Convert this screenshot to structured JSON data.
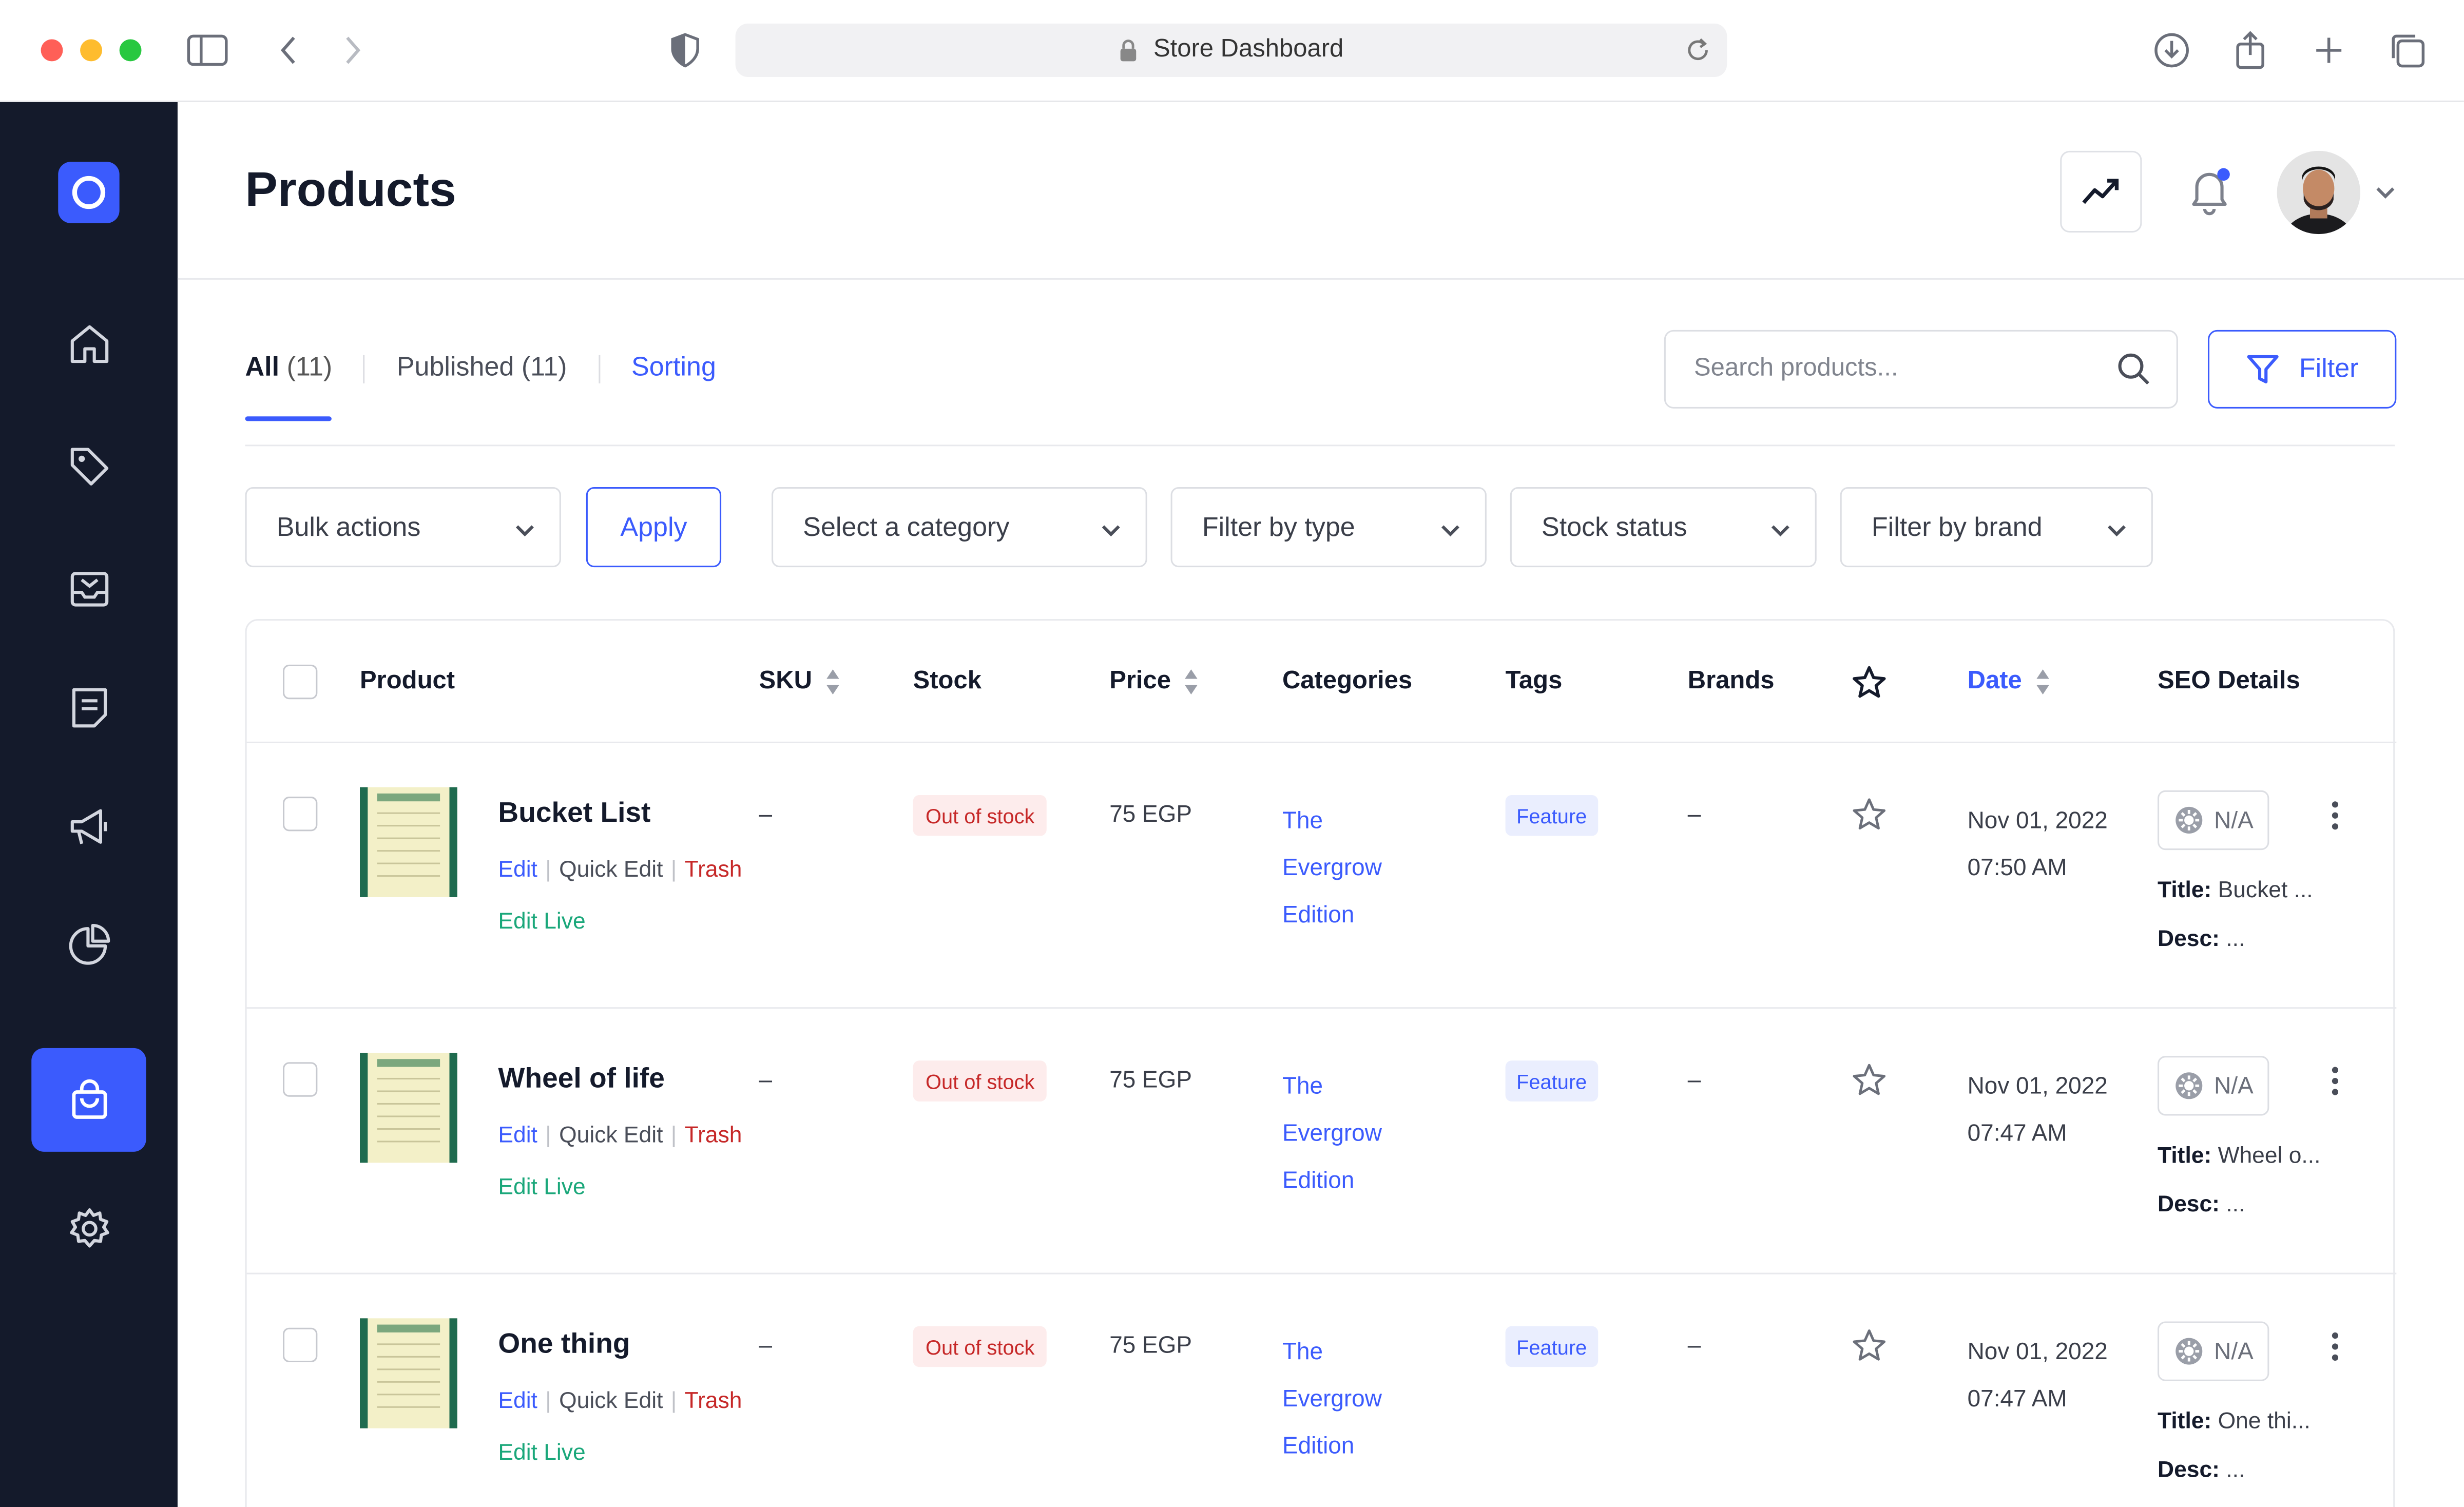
{
  "browser": {
    "address": "Store Dashboard"
  },
  "header": {
    "title": "Products"
  },
  "tabs": {
    "all_label": "All",
    "all_count": "(11)",
    "published": "Published (11)",
    "sorting": "Sorting"
  },
  "search": {
    "placeholder": "Search products..."
  },
  "filter_button": "Filter",
  "filters": {
    "bulk": "Bulk actions",
    "apply": "Apply",
    "category": "Select a category",
    "type": "Filter by type",
    "stock": "Stock status",
    "brand": "Filter by brand"
  },
  "table": {
    "columns": {
      "product": "Product",
      "sku": "SKU",
      "stock": "Stock",
      "price": "Price",
      "categories": "Categories",
      "tags": "Tags",
      "brands": "Brands",
      "date": "Date",
      "seo": "SEO Details"
    },
    "row_actions": {
      "edit": "Edit",
      "quick_edit": "Quick Edit",
      "trash": "Trash",
      "edit_live": "Edit Live",
      "sep": "|"
    },
    "seo_labels": {
      "title": "Title:",
      "desc": "Desc:"
    },
    "rows": [
      {
        "name": "Bucket List",
        "sku": "–",
        "stock": "Out of stock",
        "price": "75 EGP",
        "category_lines": [
          "The",
          "Evergrow",
          "Edition"
        ],
        "tag": "Feature",
        "brand": "–",
        "date": "Nov 01, 2022",
        "time": "07:50 AM",
        "seo_score": "N/A",
        "seo_title": "Bucket ...",
        "seo_desc": "..."
      },
      {
        "name": "Wheel of life",
        "sku": "–",
        "stock": "Out of stock",
        "price": "75 EGP",
        "category_lines": [
          "The",
          "Evergrow",
          "Edition"
        ],
        "tag": "Feature",
        "brand": "–",
        "date": "Nov 01, 2022",
        "time": "07:47 AM",
        "seo_score": "N/A",
        "seo_title": "Wheel o...",
        "seo_desc": "..."
      },
      {
        "name": "One thing",
        "sku": "–",
        "stock": "Out of stock",
        "price": "75 EGP",
        "category_lines": [
          "The",
          "Evergrow",
          "Edition"
        ],
        "tag": "Feature",
        "brand": "–",
        "date": "Nov 01, 2022",
        "time": "07:47 AM",
        "seo_score": "N/A",
        "seo_title": "One thi...",
        "seo_desc": "..."
      }
    ]
  },
  "sidebar": {
    "items": [
      {
        "icon": "home-icon"
      },
      {
        "icon": "tag-icon"
      },
      {
        "icon": "inbox-icon"
      },
      {
        "icon": "document-icon"
      },
      {
        "icon": "megaphone-icon"
      },
      {
        "icon": "pie-chart-icon"
      },
      {
        "icon": "shopping-bag-icon",
        "active": true
      },
      {
        "icon": "settings-gear-icon"
      }
    ]
  },
  "colors": {
    "accent": "#3b5bfd",
    "sidebar": "#141a2b",
    "danger": "#c62828",
    "success": "#1aa77a"
  }
}
